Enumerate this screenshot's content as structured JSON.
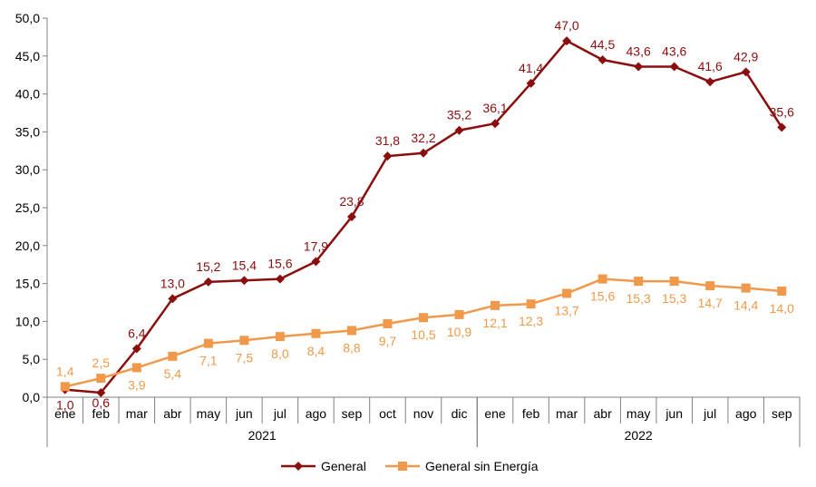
{
  "chart_data": {
    "type": "line",
    "categories": [
      "ene",
      "feb",
      "mar",
      "abr",
      "may",
      "jun",
      "jul",
      "ago",
      "sep",
      "oct",
      "nov",
      "dic",
      "ene",
      "feb",
      "mar",
      "abr",
      "may",
      "jun",
      "jul",
      "ago",
      "sep"
    ],
    "year_groups": [
      {
        "label": "2021",
        "start": 0,
        "count": 12
      },
      {
        "label": "2022",
        "start": 12,
        "count": 9
      }
    ],
    "ylim": [
      0,
      50
    ],
    "yticks": [
      "0,0",
      "5,0",
      "10,0",
      "15,0",
      "20,0",
      "25,0",
      "30,0",
      "35,0",
      "40,0",
      "45,0",
      "50,0"
    ],
    "ytick_values": [
      0,
      5,
      10,
      15,
      20,
      25,
      30,
      35,
      40,
      45,
      50
    ],
    "grid": false,
    "legend_position": "bottom",
    "series": [
      {
        "name": "General",
        "color": "#8b0e0e",
        "marker": "diamond",
        "values": [
          1.0,
          0.6,
          6.4,
          13.0,
          15.2,
          15.4,
          15.6,
          17.9,
          23.8,
          31.8,
          32.2,
          35.2,
          36.1,
          41.4,
          47.0,
          44.5,
          43.6,
          43.6,
          41.6,
          42.9,
          35.6
        ],
        "labels": [
          "1,0",
          "0,6",
          "6,4",
          "13,0",
          "15,2",
          "15,4",
          "15,6",
          "17,9",
          "23,8",
          "31,8",
          "32,2",
          "35,2",
          "36,1",
          "41,4",
          "47,0",
          "44,5",
          "43,6",
          "43,6",
          "41,6",
          "42,9",
          "35,6"
        ]
      },
      {
        "name": "General sin Energía",
        "color": "#f0994a",
        "marker": "square",
        "values": [
          1.4,
          2.5,
          3.9,
          5.4,
          7.1,
          7.5,
          8.0,
          8.4,
          8.8,
          9.7,
          10.5,
          10.9,
          12.1,
          12.3,
          13.7,
          15.6,
          15.3,
          15.3,
          14.7,
          14.4,
          14.0
        ],
        "labels": [
          "1,4",
          "2,5",
          "3,9",
          "5,4",
          "7,1",
          "7,5",
          "8,0",
          "8,4",
          "8,8",
          "9,7",
          "10,5",
          "10,9",
          "12,1",
          "12,3",
          "13,7",
          "15,6",
          "15,3",
          "15,3",
          "14,7",
          "14,4",
          "14,0"
        ]
      }
    ]
  }
}
